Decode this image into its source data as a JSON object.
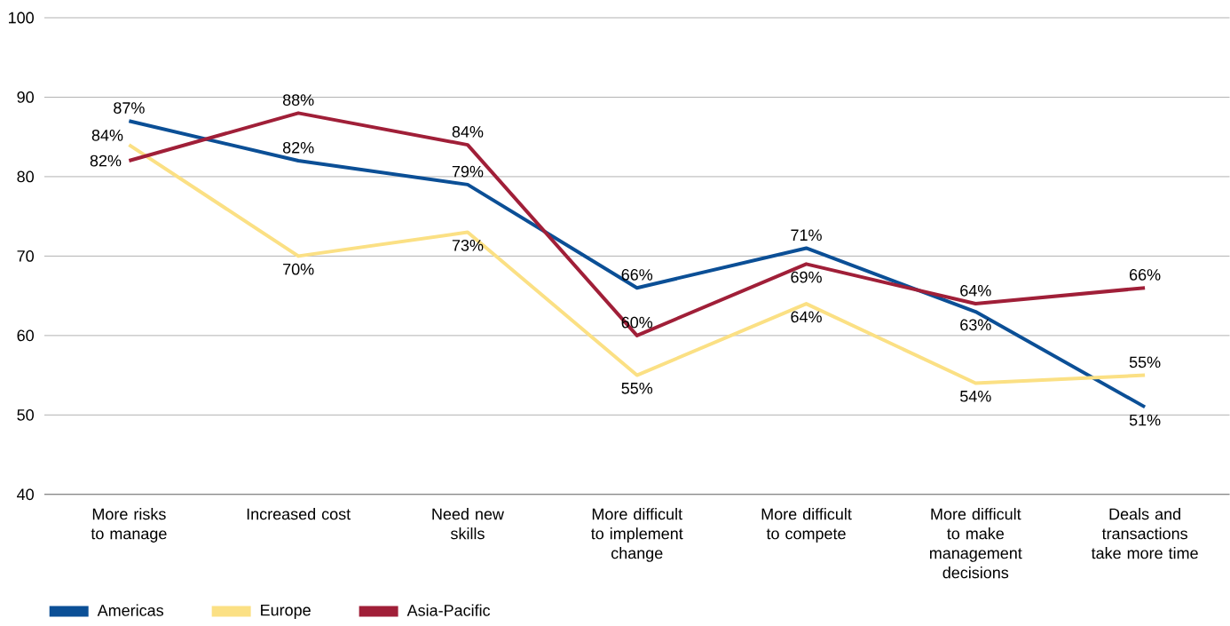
{
  "chart_data": {
    "type": "line",
    "categories": [
      "More risks to manage",
      "Increased cost",
      "Need new skills",
      "More difficult to implement change",
      "More difficult to compete",
      "More difficult to make management decisions",
      "Deals and transactions take more time"
    ],
    "series": [
      {
        "name": "Americas",
        "color": "#0b4f96",
        "values": [
          87,
          82,
          79,
          66,
          71,
          63,
          51
        ],
        "value_labels": [
          "87%",
          "82%",
          "79%",
          "66%",
          "71%",
          "63%",
          "51%"
        ]
      },
      {
        "name": "Europe",
        "color": "#fbe084",
        "values": [
          84,
          70,
          73,
          55,
          64,
          54,
          55
        ],
        "value_labels": [
          "84%",
          "70%",
          "73%",
          "55%",
          "64%",
          "54%",
          "55%"
        ]
      },
      {
        "name": "Asia-Pacific",
        "color": "#a01f38",
        "values": [
          82,
          88,
          84,
          60,
          69,
          64,
          66
        ],
        "value_labels": [
          "82%",
          "88%",
          "84%",
          "60%",
          "69%",
          "64%",
          "66%"
        ]
      }
    ],
    "ylim": [
      40,
      100
    ],
    "yticks": [
      40,
      50,
      60,
      70,
      80,
      90,
      100
    ],
    "grid": "y",
    "legend": "bottom left"
  }
}
